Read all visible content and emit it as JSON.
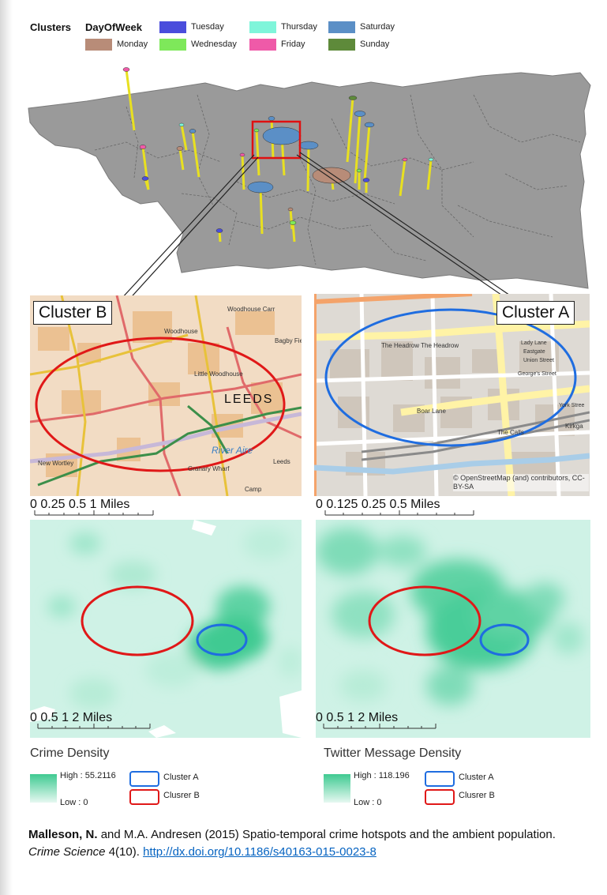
{
  "legend": {
    "title": "Clusters",
    "field": "DayOfWeek",
    "items": [
      {
        "label": "Monday",
        "color": "#b88c78"
      },
      {
        "label": "Tuesday",
        "color": "#4a4ddc"
      },
      {
        "label": "Wednesday",
        "color": "#7ee85a"
      },
      {
        "label": "Thursday",
        "color": "#7ff5da"
      },
      {
        "label": "Friday",
        "color": "#ef5aa8"
      },
      {
        "label": "Saturday",
        "color": "#5b8fc6"
      },
      {
        "label": "Sunday",
        "color": "#5e8a3a"
      }
    ]
  },
  "callouts": {
    "cluster_b": "Cluster B",
    "cluster_a": "Cluster A"
  },
  "map_b": {
    "labels": {
      "leeds": "LEEDS",
      "woodhouse": "Woodhouse",
      "woodhouse_carr": "Woodhouse Carr",
      "little_woodhouse": "Little Woodhouse",
      "bagby_fields": "Bagby Fields",
      "river_aire": "River Aire",
      "new_wortley": "New Wortley",
      "granary_wharf": "Granary Wharf",
      "leeds_stn": "Leeds",
      "camp": "Camp"
    },
    "scale": {
      "ticks": [
        "0",
        "0.25",
        "0.5",
        "1 Miles"
      ]
    }
  },
  "map_a": {
    "labels": {
      "headrow": "The Headrow The Headrow",
      "lady_lane": "Lady Lane",
      "eastgate": "Eastgate",
      "union_street": "Union Street",
      "georges": "George's Street",
      "boar_lane": "Boar Lane",
      "the_calls": "The Calls",
      "kirkgate": "Kirkga",
      "york_street": "York Stree"
    },
    "attribution": "© OpenStreetMap (and) contributors, CC-BY-SA",
    "scale": {
      "ticks": [
        "0",
        "0.125",
        "0.25",
        "0.5 Miles"
      ]
    }
  },
  "density_left": {
    "scale": {
      "ticks": [
        "0",
        "0.5",
        "1",
        "2 Miles"
      ]
    },
    "title": "Crime Density",
    "high": "High : 55.2116",
    "low": "Low : 0",
    "cluster_a": "Cluster A",
    "cluster_b": "Clusrer B"
  },
  "density_right": {
    "scale": {
      "ticks": [
        "0",
        "0.5",
        "1",
        "2 Miles"
      ]
    },
    "title": "Twitter Message Density",
    "high": "High : 118.196",
    "low": "Low : 0",
    "cluster_a": "Cluster A",
    "cluster_b": "Clusrer B"
  },
  "citation": {
    "author": "Malleson, N.",
    "text1": " and M.A. Andresen (2015) Spatio-temporal crime hotspots and the ambient population. ",
    "journal": "Crime Science",
    "text2": " 4(10). ",
    "link": "http://dx.doi.org/10.1186/s40163-015-0023-8"
  }
}
